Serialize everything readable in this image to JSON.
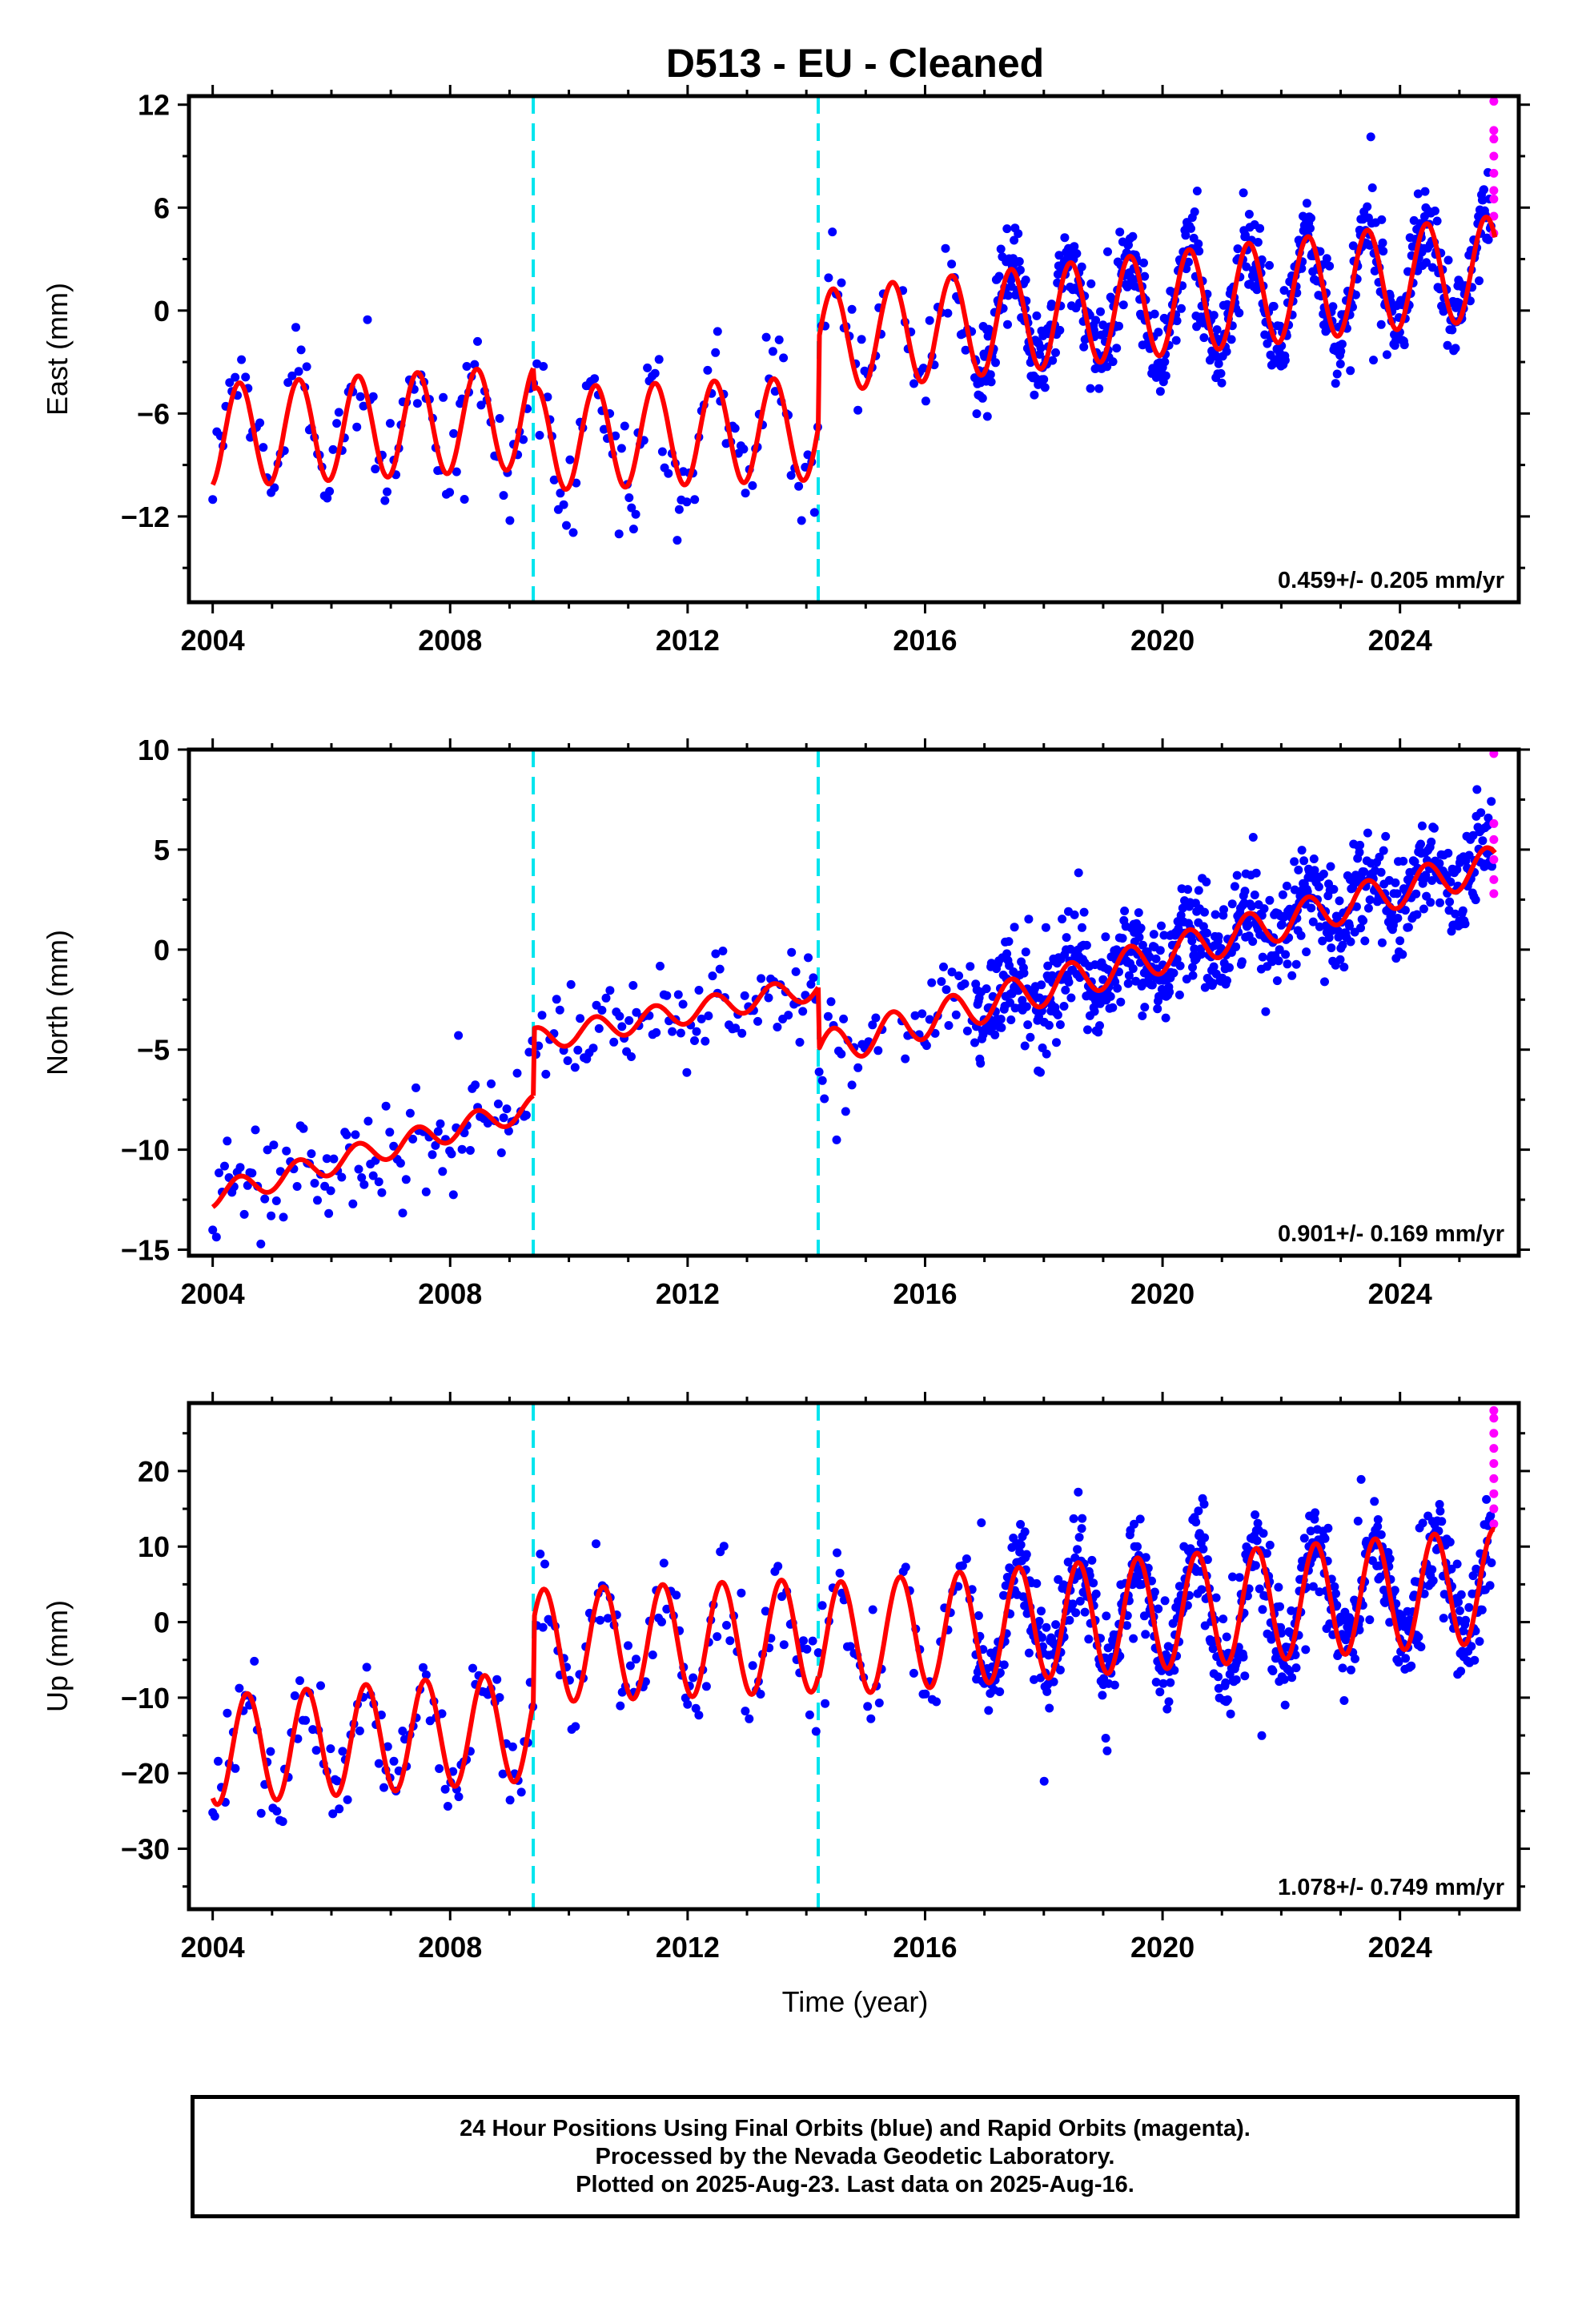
{
  "figure_title": "D513  - EU - Cleaned",
  "x_axis_title": "Time (year)",
  "footer": {
    "line1": "24 Hour Positions Using Final Orbits (blue) and Rapid Orbits (magenta).",
    "line2": "Processed by the Nevada Geodetic Laboratory.",
    "line3": "Plotted on 2025-Aug-23. Last data on 2025-Aug-16."
  },
  "colors": {
    "final_orbits": "#0000ff",
    "rapid_orbits": "#ff00ff",
    "model_fit": "#ff0000",
    "breaks": "#00e5ee"
  },
  "chart_data": [
    {
      "type": "scatter",
      "ylabel": "East (mm)",
      "xlabel": "",
      "xlim": [
        2003.6,
        2026.0
      ],
      "ylim": [
        -17,
        12.5
      ],
      "xticks": [
        2004,
        2008,
        2012,
        2016,
        2020,
        2024
      ],
      "yticks": [
        -12,
        -6,
        0,
        6,
        12
      ],
      "breaks": [
        2009.4,
        2014.2
      ],
      "rate_label": "0.459+/- 0.205 mm/yr",
      "last_final": 2025.55,
      "model": {
        "type": "trend_plus_annual_sine",
        "segments": [
          {
            "x0": 2004.0,
            "x1": 2009.4,
            "intercept_at_2004": -7.3,
            "slope": 0.2,
            "amplitude": 3.0
          },
          {
            "x0": 2009.4,
            "x1": 2014.2,
            "intercept_at_2004": -8.2,
            "slope": 0.13,
            "amplitude": 3.0
          },
          {
            "x0": 2014.2,
            "x1": 2025.6,
            "intercept_at_2014": -1.9,
            "slope": 0.38,
            "amplitude": 3.0
          }
        ],
        "phase_peak": 0.45,
        "final_amplitude": 3.3
      },
      "scatter": {
        "noise_sd": 1.3,
        "outlier_rate": 0.02,
        "outlier_sd": 3.5,
        "early_step": 0.05,
        "late_step": 0.012,
        "dense_from": 2016.8
      },
      "rapid_orbit_points": {
        "x": 2025.58,
        "y": [
          4.5,
          5.5,
          6.5,
          7.0,
          8.0,
          9.0,
          10.0,
          10.5,
          12.2
        ]
      }
    },
    {
      "type": "scatter",
      "ylabel": "North (mm)",
      "xlabel": "",
      "xlim": [
        2003.6,
        2026.0
      ],
      "ylim": [
        -15.3,
        10
      ],
      "xticks": [
        2004,
        2008,
        2012,
        2016,
        2020,
        2024
      ],
      "yticks": [
        -15,
        -10,
        -5,
        0,
        5,
        10
      ],
      "breaks": [
        2009.4,
        2014.2
      ],
      "rate_label": "0.901+/- 0.169 mm/yr",
      "last_final": 2025.55,
      "model": {
        "type": "trend_plus_annual_sine",
        "segments": [
          {
            "x0": 2004.0,
            "x1": 2009.4,
            "intercept_at_2004": -12.3,
            "slope": 0.82,
            "amplitude": 0.6
          },
          {
            "x0": 2009.4,
            "x1": 2014.2,
            "intercept_at_2004": -7.5,
            "slope": 0.55,
            "amplitude": 0.6
          },
          {
            "x0": 2014.2,
            "x1": 2025.6,
            "intercept_at_2014": -5.2,
            "slope": 0.82,
            "amplitude": 0.9
          }
        ],
        "phase_peak": 0.45,
        "final_amplitude": 0.9
      },
      "scatter": {
        "noise_sd": 1.2,
        "outlier_rate": 0.02,
        "outlier_sd": 3.5,
        "early_step": 0.05,
        "late_step": 0.012,
        "dense_from": 2016.8
      },
      "rapid_orbit_points": {
        "x": 2025.58,
        "y": [
          2.8,
          3.5,
          4.5,
          5.5,
          6.3,
          9.8
        ]
      }
    },
    {
      "type": "scatter",
      "ylabel": "Up (mm)",
      "xlabel": "Time (year)",
      "xlim": [
        2003.6,
        2026.0
      ],
      "ylim": [
        -38,
        29
      ],
      "xticks": [
        2004,
        2008,
        2012,
        2016,
        2020,
        2024
      ],
      "yticks": [
        -30,
        -20,
        -10,
        0,
        10,
        20
      ],
      "breaks": [
        2009.4,
        2014.2
      ],
      "rate_label": "1.078+/- 0.749 mm/yr",
      "last_final": 2025.55,
      "model": {
        "type": "trend_plus_annual_sine",
        "segments": [
          {
            "x0": 2004.0,
            "x1": 2009.4,
            "intercept_at_2004": -17.0,
            "slope": 0.6,
            "amplitude": 7.2
          },
          {
            "x0": 2009.4,
            "x1": 2014.2,
            "intercept_at_2004": -4.8,
            "slope": 0.3,
            "amplitude": 7.5
          },
          {
            "x0": 2014.2,
            "x1": 2025.6,
            "intercept_at_2014": -2.5,
            "slope": 0.63,
            "amplitude": 7.5
          }
        ],
        "phase_peak": 0.58,
        "final_amplitude": 7.5
      },
      "scatter": {
        "noise_sd": 3.5,
        "outlier_rate": 0.02,
        "outlier_sd": 8.0,
        "early_step": 0.05,
        "late_step": 0.012,
        "dense_from": 2016.8
      },
      "rapid_orbit_points": {
        "x": 2025.58,
        "y": [
          13,
          15,
          17,
          19,
          21,
          23,
          25,
          27,
          28
        ]
      }
    }
  ]
}
